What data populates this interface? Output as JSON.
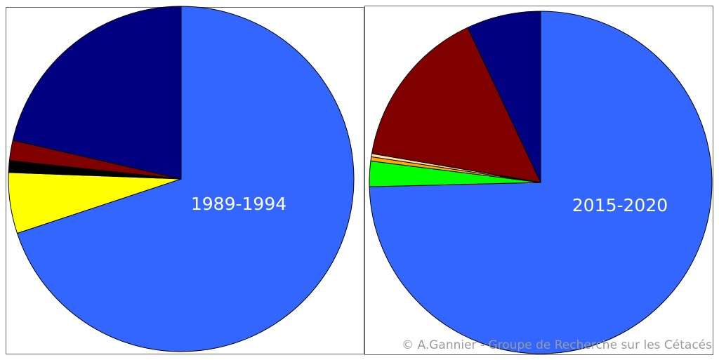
{
  "chart_data": [
    {
      "type": "pie",
      "title": "1989-1994",
      "values": [
        69.9,
        5.7,
        1.1,
        1.9,
        21.4
      ],
      "colors": [
        "#3366ff",
        "#ffff00",
        "#000000",
        "#800000",
        "#000080"
      ]
    },
    {
      "type": "pie",
      "title": "2015-2020",
      "values": [
        74.6,
        2.4,
        0.4,
        0.3,
        15.3,
        7.0
      ],
      "colors": [
        "#3366ff",
        "#00ff00",
        "#ffaa00",
        "#ffe0a0",
        "#800000",
        "#000080"
      ]
    }
  ],
  "credit": "© A.Gannier - Groupe de Recherche sur les Cétacés"
}
